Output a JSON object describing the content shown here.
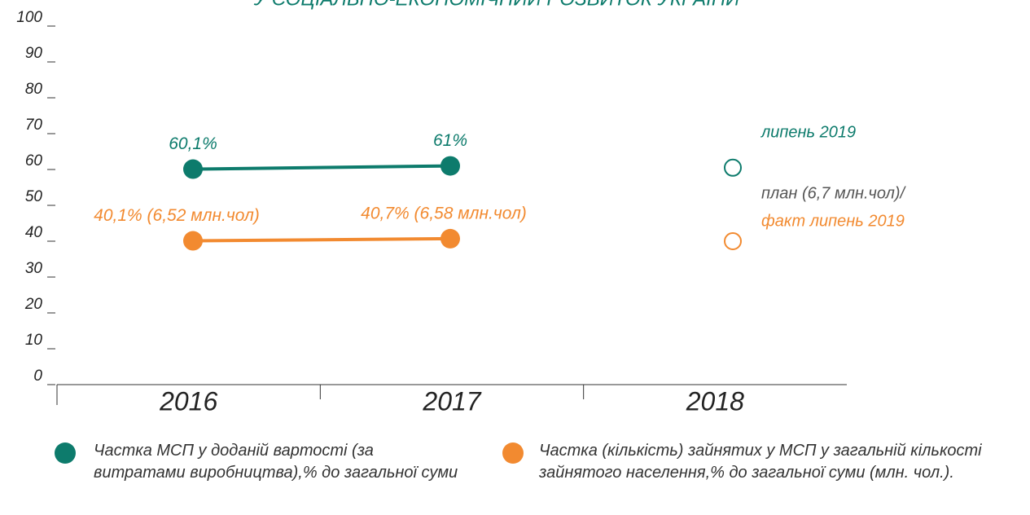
{
  "chart_data": {
    "type": "line",
    "title": "У СОЦІАЛЬНО-ЕКОНОМІЧНИЙ РОЗВИТОК УКРАЇНИ",
    "categories": [
      "2016",
      "2017",
      "2018"
    ],
    "ylim": [
      0,
      100
    ],
    "yticks": [
      0,
      10,
      20,
      30,
      40,
      50,
      60,
      70,
      80,
      90,
      100
    ],
    "hollow": [
      false,
      false,
      true
    ],
    "series": [
      {
        "name": "Частка МСП у доданій вартості (за витратами виробництва),% до загальної суми",
        "color": "#0d7b6c",
        "values": [
          60.1,
          61,
          60.5
        ],
        "value_labels": [
          "60,1%",
          "61%",
          null
        ]
      },
      {
        "name": "Частка (кількість) зайнятих у МСП у загальній кількості зайнятого населення,% до загальної суми (млн. чол.).",
        "color": "#f28a30",
        "values": [
          40.1,
          40.7,
          40
        ],
        "value_labels": [
          "40,1% (6,52 млн.чол)",
          "40,7% (6,58 млн.чол)",
          null
        ]
      }
    ],
    "annotations": [
      {
        "text": "липень 2019",
        "color": "#0d7b6c"
      },
      {
        "text": "план (6,7 млн.чол)/",
        "color": "#555555"
      },
      {
        "text": "факт липень 2019",
        "color": "#f28a30"
      }
    ]
  }
}
